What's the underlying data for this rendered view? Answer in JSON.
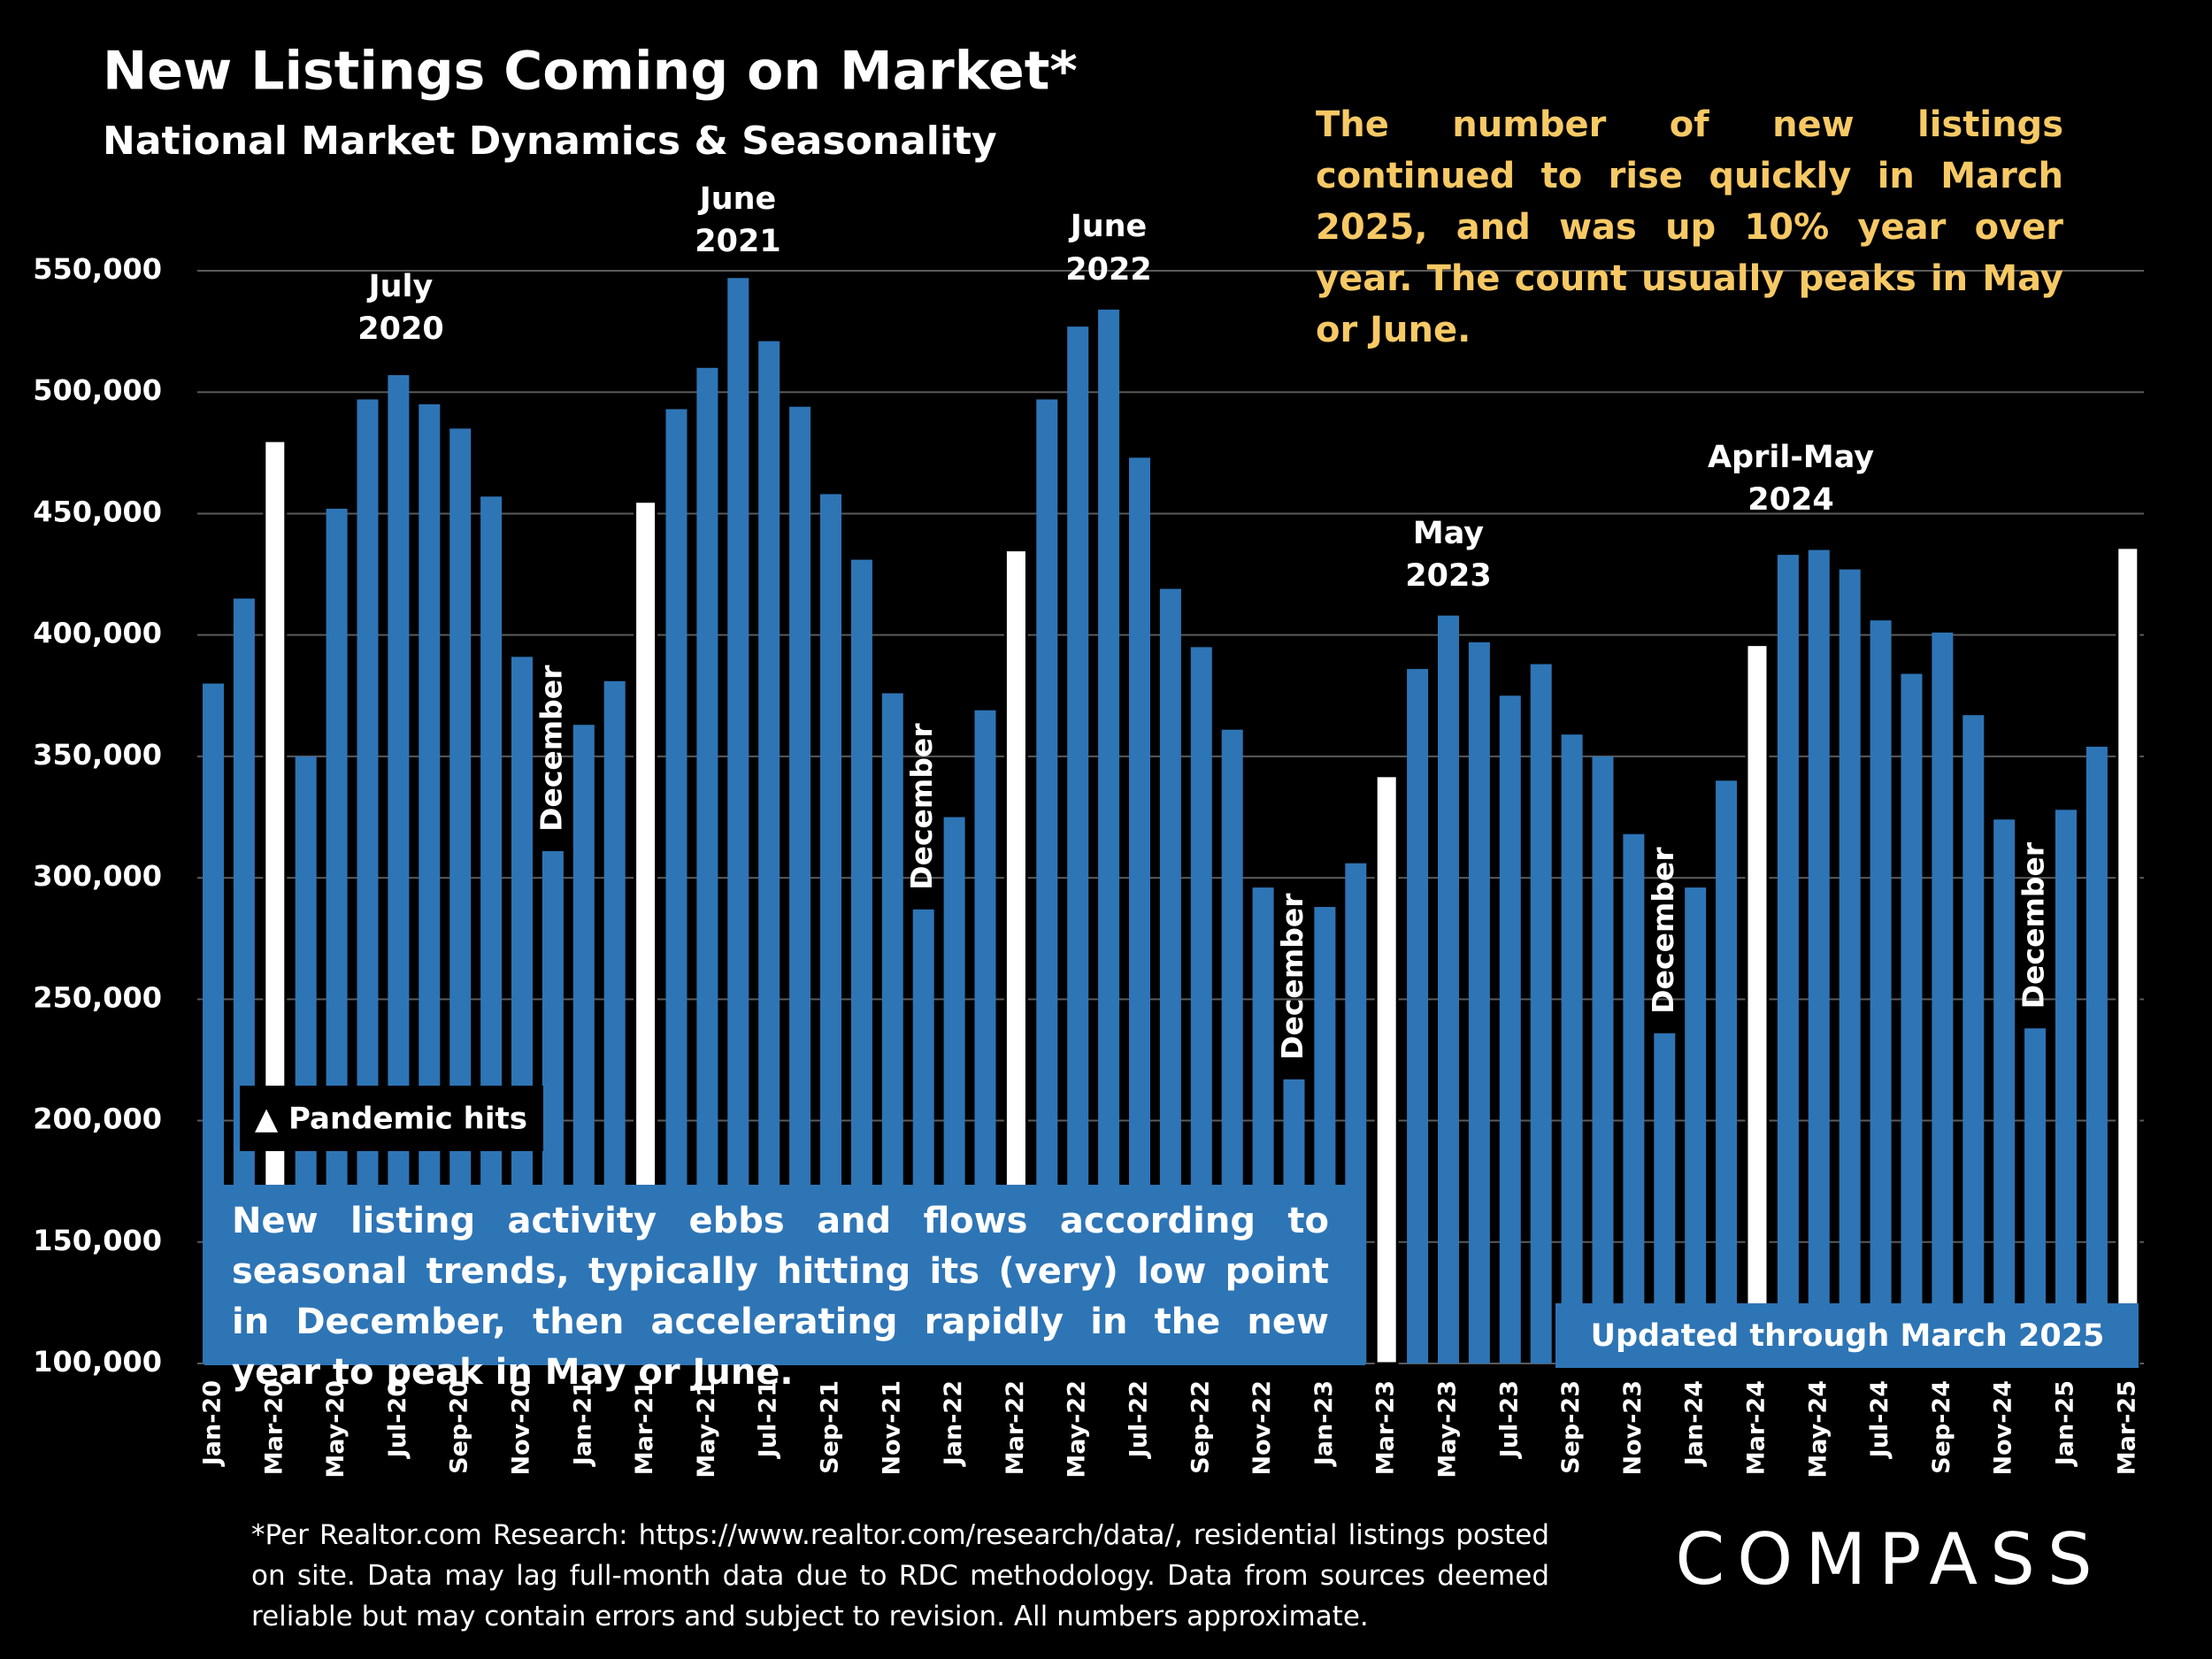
{
  "chart_data": {
    "type": "bar",
    "title": "New Listings Coming on Market*",
    "subtitle": "National Market Dynamics & Seasonality",
    "categories": [
      "Jan-20",
      null,
      "Mar-20",
      null,
      "May-20",
      null,
      "Jul-20",
      null,
      "Sep-20",
      null,
      "Nov-20",
      null,
      "Jan-21",
      null,
      "Mar-21",
      null,
      "May-21",
      null,
      "Jul-21",
      null,
      "Sep-21",
      null,
      "Nov-21",
      null,
      "Jan-22",
      null,
      "Mar-22",
      null,
      "May-22",
      null,
      "Jul-22",
      null,
      "Sep-22",
      null,
      "Nov-22",
      null,
      "Jan-23",
      null,
      "Mar-23",
      null,
      "May-23",
      null,
      "Jul-23",
      null,
      "Sep-23",
      null,
      "Nov-23",
      null,
      "Jan-24",
      null,
      "Mar-24",
      null,
      "May-24",
      null,
      "Jul-24",
      null,
      "Sep-24",
      null,
      "Nov-24",
      null,
      "Jan-25",
      null,
      "Mar-25"
    ],
    "values": [
      380000,
      415000,
      480000,
      350000,
      452000,
      497000,
      507000,
      495000,
      485000,
      457000,
      391000,
      311000,
      363000,
      381000,
      455000,
      493000,
      510000,
      547000,
      521000,
      494000,
      458000,
      431000,
      376000,
      287000,
      325000,
      369000,
      435000,
      497000,
      527000,
      534000,
      473000,
      419000,
      395000,
      361000,
      296000,
      217000,
      288000,
      306000,
      342000,
      386000,
      408000,
      397000,
      375000,
      388000,
      359000,
      350000,
      318000,
      236000,
      296000,
      340000,
      396000,
      433000,
      435000,
      427000,
      406000,
      384000,
      401000,
      367000,
      324000,
      238000,
      328000,
      354000,
      436000
    ],
    "color": "#2e75b6",
    "highlight_color": "#ffffff",
    "highlight_categories": [
      "Mar-20",
      "Mar-21",
      "Mar-22",
      "Mar-23",
      "Mar-24",
      "Mar-25"
    ],
    "ylim": [
      100000,
      550000
    ],
    "yticks": [
      {
        "value": 100000,
        "label": "100,000"
      },
      {
        "value": 150000,
        "label": "150,000"
      },
      {
        "value": 200000,
        "label": "200,000"
      },
      {
        "value": 250000,
        "label": "250,000"
      },
      {
        "value": 300000,
        "label": "300,000"
      },
      {
        "value": 350000,
        "label": "350,000"
      },
      {
        "value": 400000,
        "label": "400,000"
      },
      {
        "value": 450000,
        "label": "450,000"
      },
      {
        "value": 500000,
        "label": "500,000"
      },
      {
        "value": 550000,
        "label": "550,000"
      }
    ],
    "grid": true,
    "annotations": {
      "peaks": [
        [
          "July",
          "2020"
        ],
        [
          "June",
          "2021"
        ],
        [
          "June",
          "2022"
        ],
        [
          "May",
          "2023"
        ],
        [
          "April-May",
          "2024"
        ]
      ],
      "decembers": [
        "December",
        "December",
        "December",
        "December",
        "December"
      ],
      "pandemic": "▲ Pandemic hits",
      "seasonal_note": "New listing activity ebbs and flows according to seasonal trends, typically hitting its (very) low point in December, then accelerating rapidly in the new year to peak in May or June.",
      "updated": "Updated through March 2025",
      "commentary": "The number of new listings continued to rise quickly in March 2025, and was up 10% year over year. The count usually peaks in May or June."
    },
    "footnote": "*Per Realtor.com Research:  https://www.realtor.com/research/data/, residential listings posted on site. Data may lag full-month data due to RDC methodology. Data from sources deemed reliable but may contain errors and subject to revision. All numbers approximate.",
    "logo": "COMPASS"
  }
}
